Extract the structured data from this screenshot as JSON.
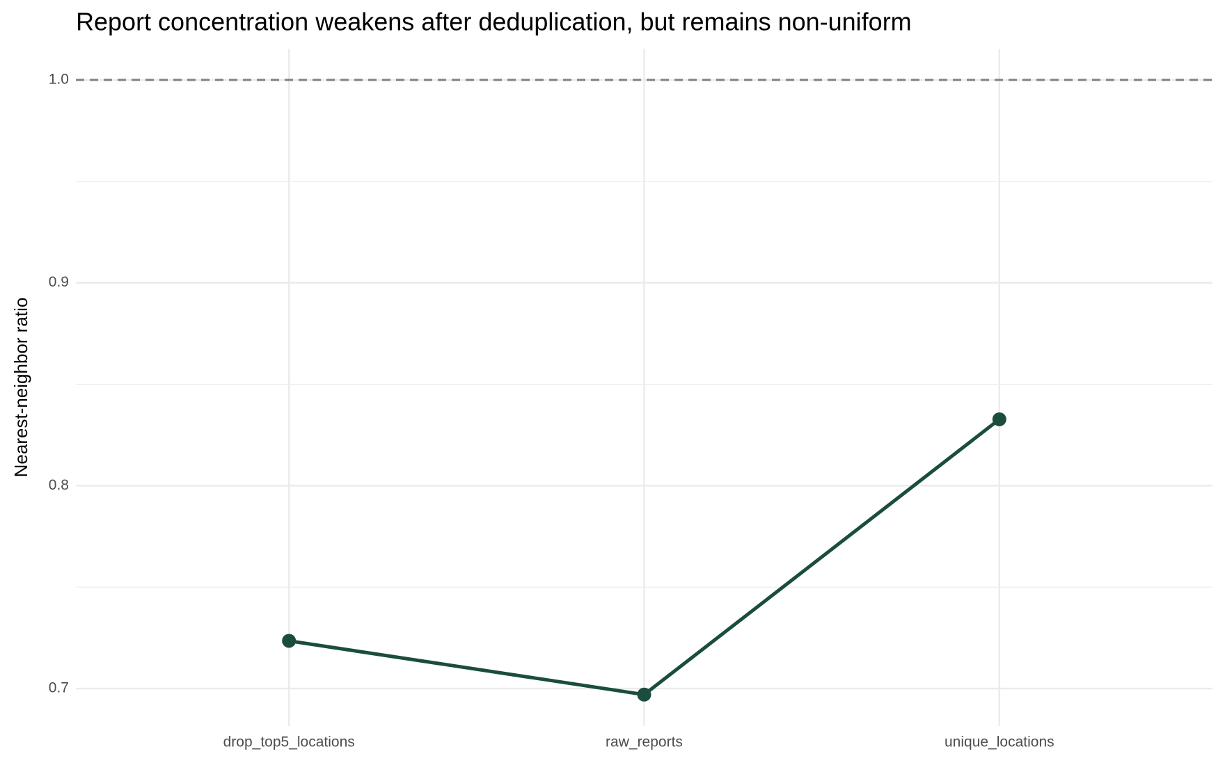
{
  "chart_data": {
    "type": "line",
    "title": "Report concentration weakens after deduplication, but remains non-uniform",
    "y_label": "Nearest-neighbor ratio",
    "categories": [
      "drop_top5_locations",
      "raw_reports",
      "unique_locations"
    ],
    "values": [
      0.7235,
      0.697,
      0.8327
    ],
    "color": "#1b4d3e",
    "ylim": [
      0.6815,
      1.0154
    ],
    "yticks": [
      0.7,
      0.8,
      0.9,
      {
        "value": 1.0,
        "label": "1.0"
      }
    ],
    "minor_grid": [
      0.75,
      0.85,
      0.95
    ],
    "reference_line": 1.0,
    "grid": true
  }
}
